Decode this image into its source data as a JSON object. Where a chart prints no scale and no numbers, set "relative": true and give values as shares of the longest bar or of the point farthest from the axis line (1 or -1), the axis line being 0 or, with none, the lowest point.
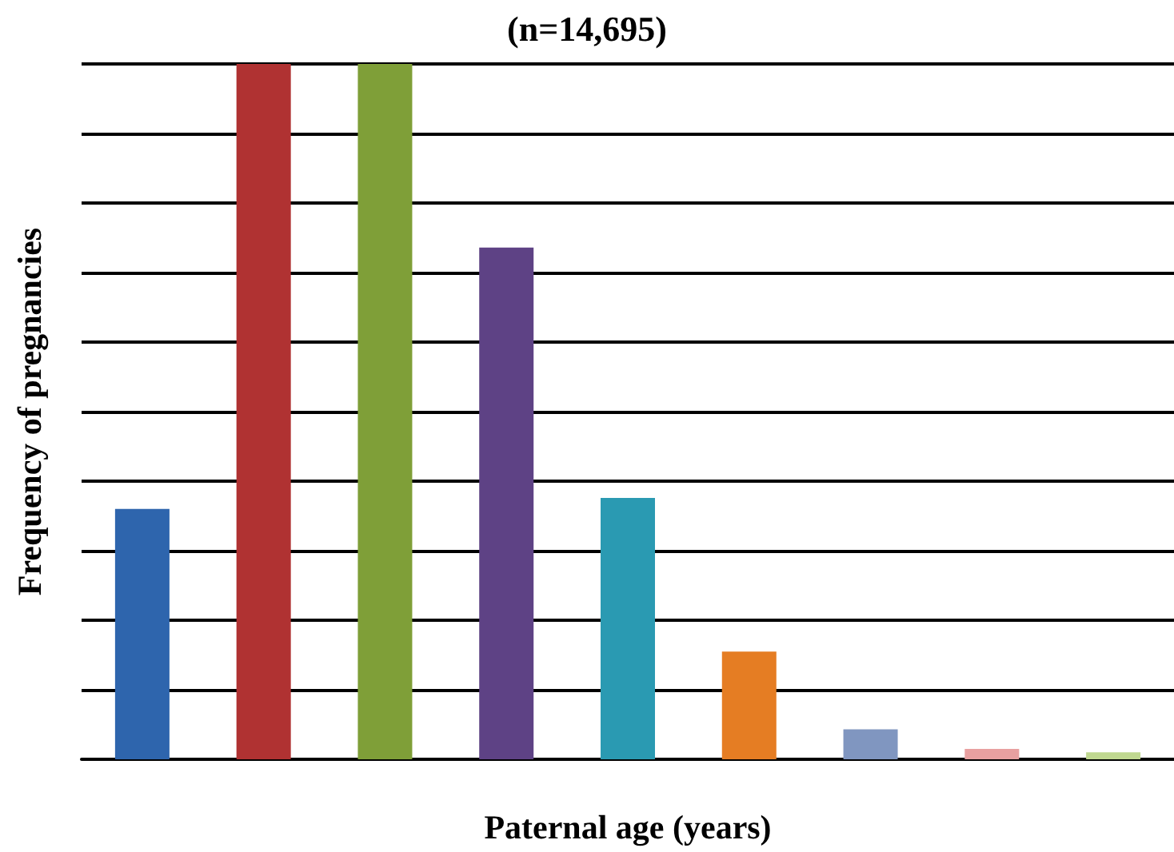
{
  "chart_data": {
    "type": "bar",
    "title": "(n=14,695)",
    "xlabel": "Paternal age (years)",
    "ylabel": "Frequency of pregnancies",
    "categories": [
      null,
      null,
      null,
      null,
      null,
      null,
      null,
      null,
      null
    ],
    "values": [
      0.36,
      1,
      1,
      0.736,
      0.376,
      0.155,
      0.043,
      0.015,
      0.01
    ],
    "colors": [
      "#2e65ad",
      "#b03232",
      "#7f9f38",
      "#5e4285",
      "#2a9ab2",
      "#e57d23",
      "#8096c0",
      "#e8a0a0",
      "#c0d890"
    ],
    "relative": true,
    "grid": "y"
  }
}
